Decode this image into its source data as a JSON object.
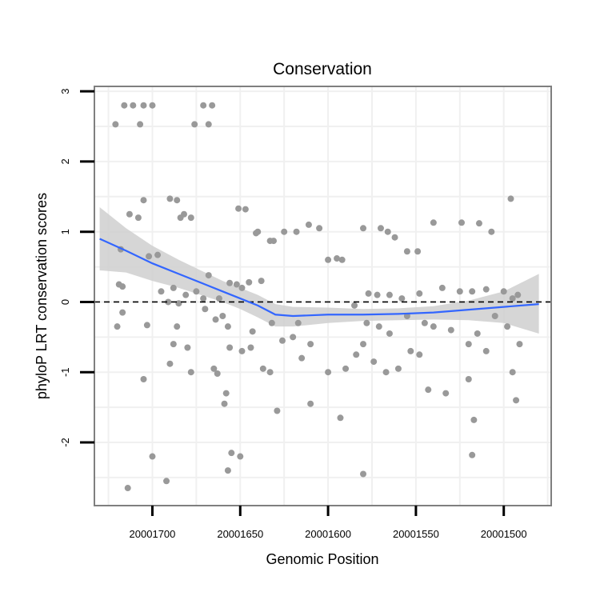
{
  "chart_data": {
    "type": "scatter",
    "title": "Conservation",
    "xlabel": "Genomic Position",
    "ylabel": "phyloP LRT conservation scores",
    "x_reversed": true,
    "xlim": [
      20001733,
      20001473
    ],
    "ylim": [
      -2.9,
      3.07
    ],
    "x_ticks": [
      20001700,
      20001650,
      20001600,
      20001550,
      20001500
    ],
    "x_tick_labels": [
      "20001700",
      "20001650",
      "20001600",
      "20001550",
      "20001500"
    ],
    "y_ticks": [
      -2,
      -1,
      0,
      1,
      2,
      3
    ],
    "y_tick_labels": [
      "-2",
      "-1",
      "0",
      "1",
      "2",
      "3"
    ],
    "grid": true,
    "reference_line": {
      "y": 0,
      "style": "dashed",
      "color": "#000000"
    },
    "colors": {
      "points": "#999999",
      "smooth": "#3366ff",
      "band": "#cfcfcf",
      "panel": "#ffffff",
      "grid": "#f0f0f0",
      "border": "#7f7f7f"
    },
    "points": [
      [
        20001721,
        2.53
      ],
      [
        20001716,
        2.8
      ],
      [
        20001711,
        2.8
      ],
      [
        20001707,
        2.53
      ],
      [
        20001705,
        2.8
      ],
      [
        20001700,
        2.8
      ],
      [
        20001676,
        2.53
      ],
      [
        20001671,
        2.8
      ],
      [
        20001668,
        2.53
      ],
      [
        20001666,
        2.8
      ],
      [
        20001718,
        0.75
      ],
      [
        20001713,
        1.25
      ],
      [
        20001708,
        1.2
      ],
      [
        20001705,
        1.45
      ],
      [
        20001690,
        1.47
      ],
      [
        20001686,
        1.45
      ],
      [
        20001682,
        1.25
      ],
      [
        20001678,
        1.2
      ],
      [
        20001684,
        1.2
      ],
      [
        20001668,
        0.38
      ],
      [
        20001688,
        0.2
      ],
      [
        20001675,
        0.15
      ],
      [
        20001697,
        0.67
      ],
      [
        20001719,
        0.25
      ],
      [
        20001717,
        0.22
      ],
      [
        20001702,
        0.65
      ],
      [
        20001695,
        0.15
      ],
      [
        20001681,
        0.1
      ],
      [
        20001691,
        0.0
      ],
      [
        20001685,
        -0.02
      ],
      [
        20001671,
        0.05
      ],
      [
        20001717,
        -0.15
      ],
      [
        20001720,
        -0.35
      ],
      [
        20001703,
        -0.33
      ],
      [
        20001688,
        -0.6
      ],
      [
        20001680,
        -0.65
      ],
      [
        20001690,
        -0.88
      ],
      [
        20001678,
        -1.0
      ],
      [
        20001705,
        -1.1
      ],
      [
        20001700,
        -2.2
      ],
      [
        20001692,
        -2.55
      ],
      [
        20001714,
        -2.65
      ],
      [
        20001686,
        -0.35
      ],
      [
        20001670,
        -0.1
      ],
      [
        20001651,
        1.33
      ],
      [
        20001647,
        1.32
      ],
      [
        20001640,
        1.0
      ],
      [
        20001633,
        0.87
      ],
      [
        20001631,
        0.87
      ],
      [
        20001625,
        1.0
      ],
      [
        20001618,
        1.0
      ],
      [
        20001611,
        1.1
      ],
      [
        20001605,
        1.05
      ],
      [
        20001600,
        0.6
      ],
      [
        20001595,
        0.62
      ],
      [
        20001592,
        0.6
      ],
      [
        20001641,
        0.98
      ],
      [
        20001656,
        0.27
      ],
      [
        20001652,
        0.25
      ],
      [
        20001645,
        0.28
      ],
      [
        20001638,
        0.3
      ],
      [
        20001649,
        0.2
      ],
      [
        20001662,
        0.05
      ],
      [
        20001660,
        -0.2
      ],
      [
        20001664,
        -0.25
      ],
      [
        20001657,
        -0.35
      ],
      [
        20001643,
        -0.42
      ],
      [
        20001632,
        -0.3
      ],
      [
        20001626,
        -0.55
      ],
      [
        20001620,
        -0.5
      ],
      [
        20001617,
        -0.3
      ],
      [
        20001610,
        -0.6
      ],
      [
        20001665,
        -0.95
      ],
      [
        20001663,
        -1.02
      ],
      [
        20001656,
        -0.65
      ],
      [
        20001649,
        -0.7
      ],
      [
        20001644,
        -0.65
      ],
      [
        20001637,
        -0.95
      ],
      [
        20001633,
        -1.0
      ],
      [
        20001615,
        -0.8
      ],
      [
        20001658,
        -1.3
      ],
      [
        20001659,
        -1.45
      ],
      [
        20001655,
        -2.15
      ],
      [
        20001650,
        -2.2
      ],
      [
        20001657,
        -2.4
      ],
      [
        20001629,
        -1.55
      ],
      [
        20001610,
        -1.45
      ],
      [
        20001600,
        -1.0
      ],
      [
        20001593,
        -1.65
      ],
      [
        20001580,
        1.05
      ],
      [
        20001570,
        1.05
      ],
      [
        20001566,
        1.0
      ],
      [
        20001562,
        0.92
      ],
      [
        20001555,
        0.72
      ],
      [
        20001549,
        0.72
      ],
      [
        20001540,
        1.13
      ],
      [
        20001524,
        1.13
      ],
      [
        20001514,
        1.12
      ],
      [
        20001507,
        1.0
      ],
      [
        20001496,
        1.47
      ],
      [
        20001577,
        0.12
      ],
      [
        20001572,
        0.1
      ],
      [
        20001565,
        0.1
      ],
      [
        20001558,
        0.05
      ],
      [
        20001548,
        0.12
      ],
      [
        20001535,
        0.2
      ],
      [
        20001525,
        0.15
      ],
      [
        20001518,
        0.15
      ],
      [
        20001510,
        0.18
      ],
      [
        20001500,
        0.15
      ],
      [
        20001495,
        0.05
      ],
      [
        20001492,
        0.1
      ],
      [
        20001585,
        -0.05
      ],
      [
        20001578,
        -0.3
      ],
      [
        20001571,
        -0.35
      ],
      [
        20001565,
        -0.45
      ],
      [
        20001555,
        -0.2
      ],
      [
        20001545,
        -0.3
      ],
      [
        20001540,
        -0.35
      ],
      [
        20001530,
        -0.4
      ],
      [
        20001520,
        -0.6
      ],
      [
        20001515,
        -0.45
      ],
      [
        20001505,
        -0.2
      ],
      [
        20001498,
        -0.35
      ],
      [
        20001590,
        -0.95
      ],
      [
        20001584,
        -0.75
      ],
      [
        20001580,
        -0.6
      ],
      [
        20001574,
        -0.85
      ],
      [
        20001567,
        -1.0
      ],
      [
        20001560,
        -0.95
      ],
      [
        20001553,
        -0.7
      ],
      [
        20001548,
        -0.75
      ],
      [
        20001543,
        -1.25
      ],
      [
        20001533,
        -1.3
      ],
      [
        20001520,
        -1.1
      ],
      [
        20001510,
        -0.7
      ],
      [
        20001495,
        -1.0
      ],
      [
        20001493,
        -1.4
      ],
      [
        20001491,
        -0.6
      ],
      [
        20001580,
        -2.45
      ],
      [
        20001518,
        -2.18
      ],
      [
        20001517,
        -1.68
      ]
    ],
    "smooth_fit": {
      "x": [
        20001730,
        20001715,
        20001700,
        20001685,
        20001670,
        20001660,
        20001650,
        20001640,
        20001630,
        20001620,
        20001600,
        20001580,
        20001560,
        20001540,
        20001520,
        20001500,
        20001480
      ],
      "y": [
        0.9,
        0.73,
        0.55,
        0.4,
        0.25,
        0.15,
        0.05,
        -0.05,
        -0.18,
        -0.2,
        -0.18,
        -0.18,
        -0.17,
        -0.15,
        -0.11,
        -0.07,
        -0.03
      ],
      "ci_upper": [
        1.35,
        1.05,
        0.8,
        0.6,
        0.42,
        0.3,
        0.2,
        0.1,
        -0.03,
        -0.07,
        -0.08,
        -0.1,
        -0.09,
        -0.06,
        0.02,
        0.15,
        0.4
      ],
      "ci_lower": [
        0.45,
        0.42,
        0.3,
        0.2,
        0.08,
        0.0,
        -0.1,
        -0.22,
        -0.35,
        -0.35,
        -0.3,
        -0.27,
        -0.26,
        -0.25,
        -0.26,
        -0.3,
        -0.45
      ]
    }
  }
}
